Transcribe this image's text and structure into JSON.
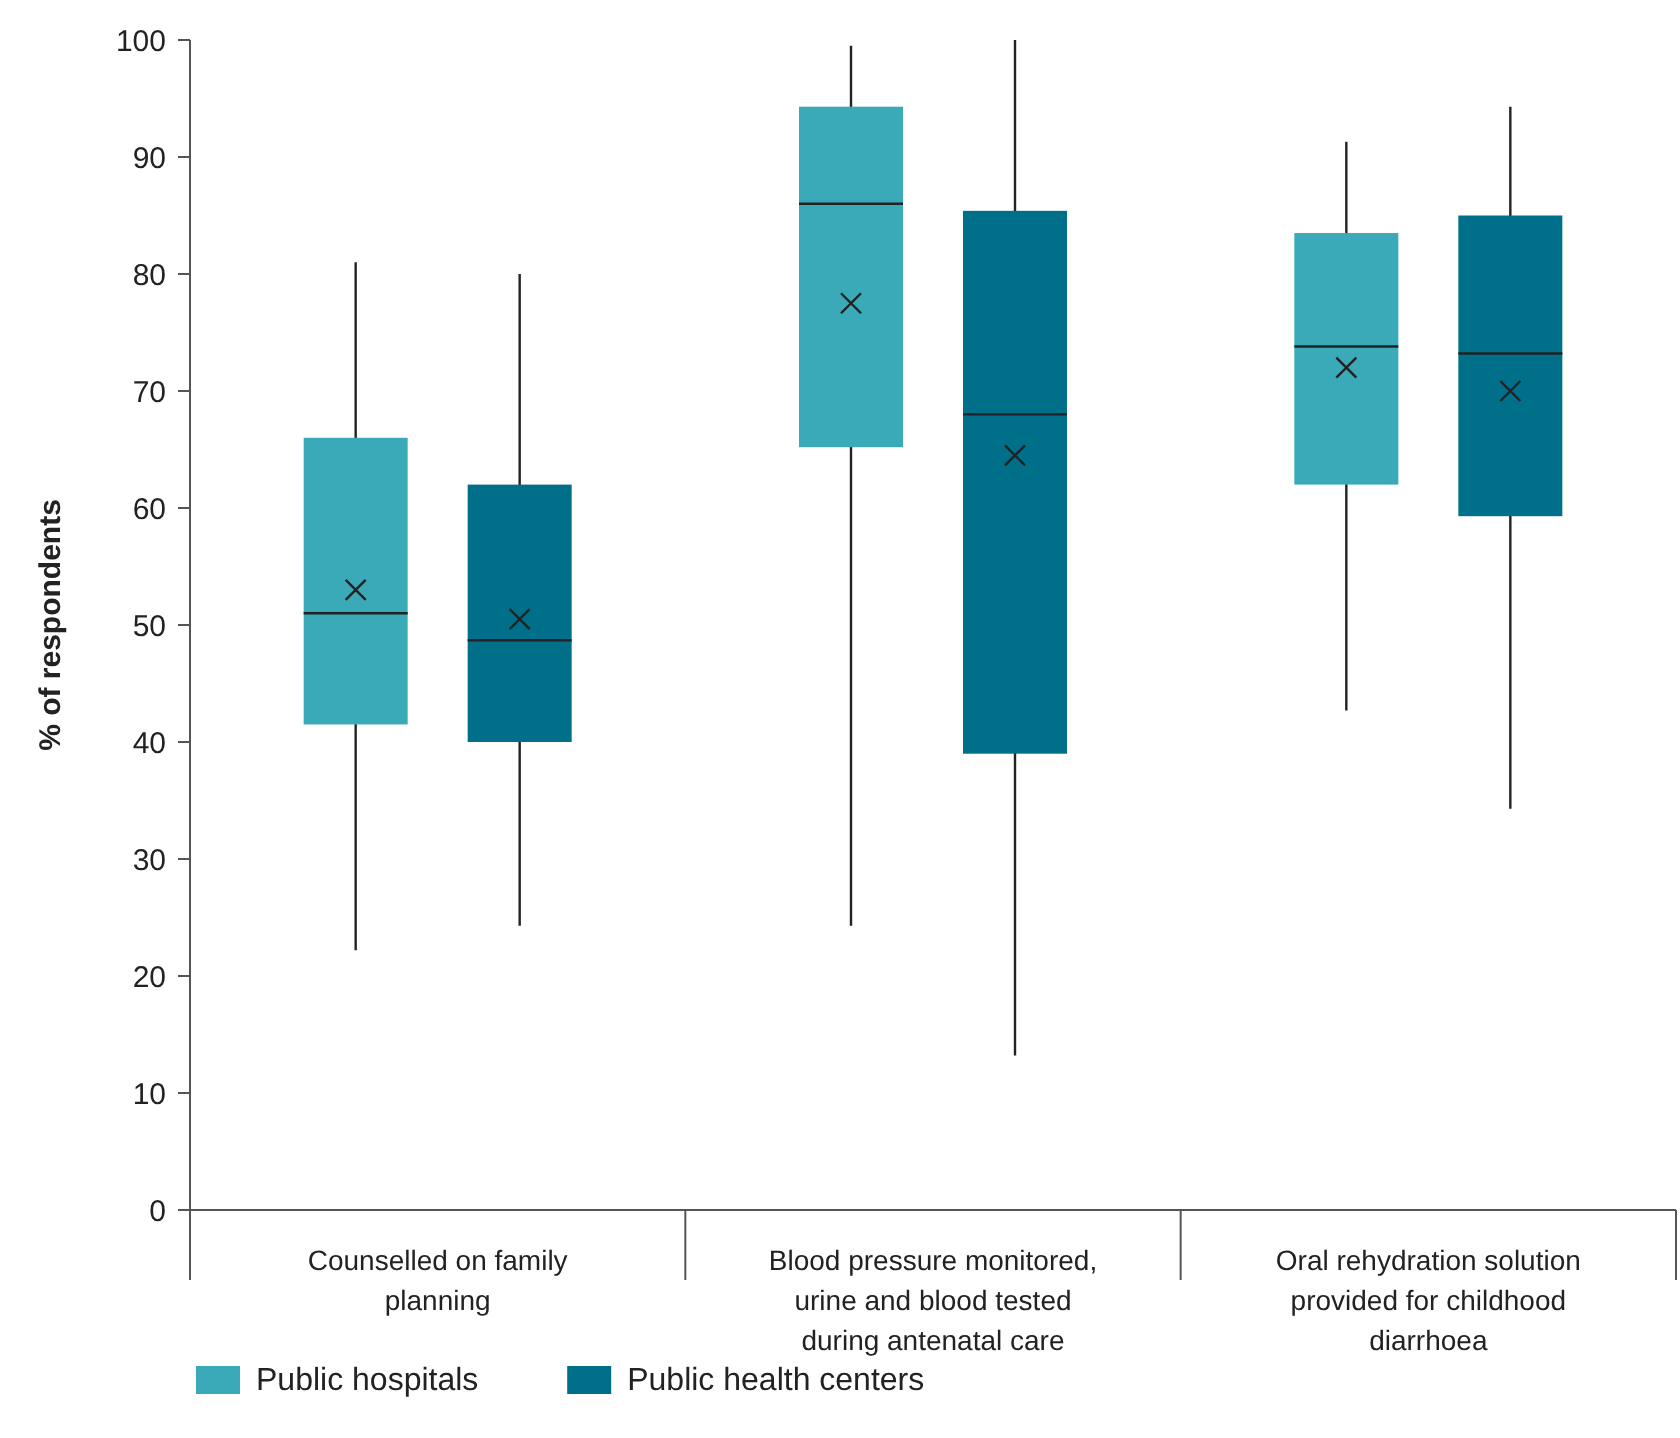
{
  "chart_data": {
    "type": "box",
    "ylabel": "% of respondents",
    "categories": [
      "Counselled on family planning",
      "Blood pressure monitored, urine and blood tested during antenatal care",
      "Oral rehydration solution provided for childhood diarrhoea"
    ],
    "ylim": [
      0,
      100
    ],
    "yticks": [
      0,
      10,
      20,
      30,
      40,
      50,
      60,
      70,
      80,
      90,
      100
    ],
    "grid": false,
    "legend": "bottom left",
    "series": [
      {
        "name": "Public hospitals",
        "color": "#3aaab8",
        "boxes": [
          {
            "low": 22.2,
            "q1": 41.5,
            "median": 51,
            "q3": 66,
            "high": 81,
            "mean": 53
          },
          {
            "low": 24.3,
            "q1": 65.2,
            "median": 86,
            "q3": 94.3,
            "high": 99.5,
            "mean": 77.5
          },
          {
            "low": 42.7,
            "q1": 62,
            "median": 73.8,
            "q3": 83.5,
            "high": 91.3,
            "mean": 72
          }
        ]
      },
      {
        "name": "Public health centers",
        "color": "#00708a",
        "boxes": [
          {
            "low": 24.3,
            "q1": 40,
            "median": 48.7,
            "q3": 62,
            "high": 80,
            "mean": 50.5
          },
          {
            "low": 13.2,
            "q1": 39,
            "median": 68,
            "q3": 85.4,
            "high": 100,
            "mean": 64.5
          },
          {
            "low": 34.3,
            "q1": 59.3,
            "median": 73.2,
            "q3": 85,
            "high": 94.3,
            "mean": 70
          }
        ]
      }
    ]
  }
}
